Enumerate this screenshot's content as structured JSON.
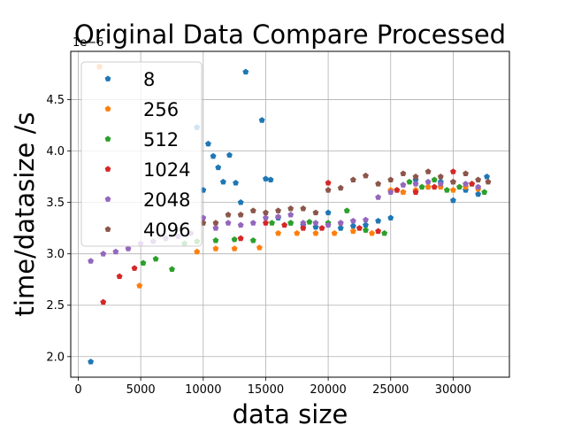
{
  "chart_data": {
    "type": "scatter",
    "title": "Original Data Compare Processed",
    "xlabel": "data size",
    "ylabel": "time/datasize /s",
    "y_offset_text": "1e−6",
    "xlim": [
      -600,
      34500
    ],
    "ylim": [
      1.8,
      4.97
    ],
    "x_ticks": [
      0,
      5000,
      10000,
      15000,
      20000,
      25000,
      30000
    ],
    "y_ticks": [
      2.0,
      2.5,
      3.0,
      3.5,
      4.0,
      4.5
    ],
    "x_tick_labels": [
      "0",
      "5000",
      "10000",
      "15000",
      "20000",
      "25000",
      "30000"
    ],
    "y_tick_labels": [
      "2.0",
      "2.5",
      "3.0",
      "3.5",
      "4.0",
      "4.5"
    ],
    "grid": true,
    "legend_position": "upper-left",
    "marker": "pentagon",
    "series": [
      {
        "name": "8",
        "color": "#1f77b4",
        "x": [
          1000,
          9500,
          10000,
          10400,
          10800,
          11200,
          11600,
          12100,
          12600,
          13000,
          13400,
          14700,
          15000,
          15400,
          16000,
          17000,
          18000,
          19000,
          20000,
          21000,
          22000,
          23000,
          24000,
          25000,
          26000,
          27000,
          28000,
          29000,
          30000,
          31000,
          32000,
          32700
        ],
        "y": [
          1.95,
          4.23,
          3.62,
          4.07,
          3.95,
          3.84,
          3.7,
          3.96,
          3.69,
          3.5,
          4.77,
          4.3,
          3.73,
          3.72,
          3.35,
          3.3,
          3.28,
          3.26,
          3.4,
          3.25,
          3.27,
          3.28,
          3.32,
          3.35,
          3.6,
          3.72,
          3.65,
          3.7,
          3.52,
          3.62,
          3.58,
          3.75
        ]
      },
      {
        "name": "256",
        "color": "#ff7f0e",
        "x": [
          1700,
          4900,
          9500,
          11000,
          12500,
          14500,
          16000,
          17500,
          19000,
          20500,
          22000,
          23500,
          25000,
          26000,
          27000,
          28000,
          29000,
          30000,
          31000,
          32000
        ],
        "y": [
          4.82,
          2.69,
          3.02,
          3.05,
          3.05,
          3.06,
          3.2,
          3.2,
          3.2,
          3.2,
          3.22,
          3.2,
          3.62,
          3.6,
          3.62,
          3.65,
          3.65,
          3.62,
          3.65,
          3.63
        ]
      },
      {
        "name": "512",
        "color": "#2ca02c",
        "x": [
          5200,
          6200,
          7500,
          8500,
          9500,
          11000,
          12500,
          14000,
          15500,
          17000,
          18500,
          20000,
          21500,
          23000,
          24500,
          25500,
          26500,
          27500,
          28500,
          29500,
          30500,
          31500,
          32500
        ],
        "y": [
          2.91,
          2.95,
          2.85,
          3.1,
          3.12,
          3.13,
          3.14,
          3.13,
          3.3,
          3.3,
          3.31,
          3.3,
          3.42,
          3.23,
          3.2,
          3.62,
          3.7,
          3.65,
          3.72,
          3.62,
          3.65,
          3.68,
          3.6
        ]
      },
      {
        "name": "1024",
        "color": "#d62728",
        "x": [
          2000,
          3300,
          4500,
          13000,
          15000,
          16500,
          18000,
          19500,
          20000,
          21000,
          22500,
          24000,
          25500,
          27000,
          28500,
          30000,
          31500
        ],
        "y": [
          2.53,
          2.78,
          2.86,
          3.15,
          3.3,
          3.28,
          3.25,
          3.25,
          3.69,
          3.3,
          3.25,
          3.22,
          3.62,
          3.6,
          3.65,
          3.8,
          3.68
        ]
      },
      {
        "name": "2048",
        "color": "#9467bd",
        "x": [
          1000,
          2000,
          3000,
          4000,
          5000,
          6000,
          7000,
          8000,
          9000,
          10000,
          11000,
          12000,
          13000,
          14000,
          15000,
          16000,
          17000,
          18000,
          19000,
          20000,
          21000,
          22000,
          23000,
          24000,
          25000,
          26000,
          27000,
          28000,
          29000,
          30000,
          31000,
          32000
        ],
        "y": [
          2.93,
          3.0,
          3.02,
          3.05,
          3.1,
          3.12,
          3.15,
          3.17,
          3.2,
          3.35,
          3.25,
          3.3,
          3.28,
          3.3,
          3.35,
          3.36,
          3.38,
          3.3,
          3.3,
          3.28,
          3.3,
          3.32,
          3.33,
          3.55,
          3.6,
          3.67,
          3.68,
          3.7,
          3.68,
          3.7,
          3.68,
          3.65
        ]
      },
      {
        "name": "4096",
        "color": "#8c564b",
        "x": [
          10000,
          11000,
          12000,
          13000,
          14000,
          15000,
          16000,
          17000,
          18000,
          19000,
          20000,
          21000,
          22000,
          23000,
          24000,
          25000,
          26000,
          27000,
          28000,
          29000,
          30000,
          31000,
          32000,
          32800
        ],
        "y": [
          3.3,
          3.3,
          3.38,
          3.38,
          3.42,
          3.4,
          3.42,
          3.44,
          3.44,
          3.4,
          3.62,
          3.64,
          3.72,
          3.76,
          3.68,
          3.72,
          3.78,
          3.75,
          3.8,
          3.75,
          3.7,
          3.78,
          3.72,
          3.7
        ]
      }
    ]
  }
}
